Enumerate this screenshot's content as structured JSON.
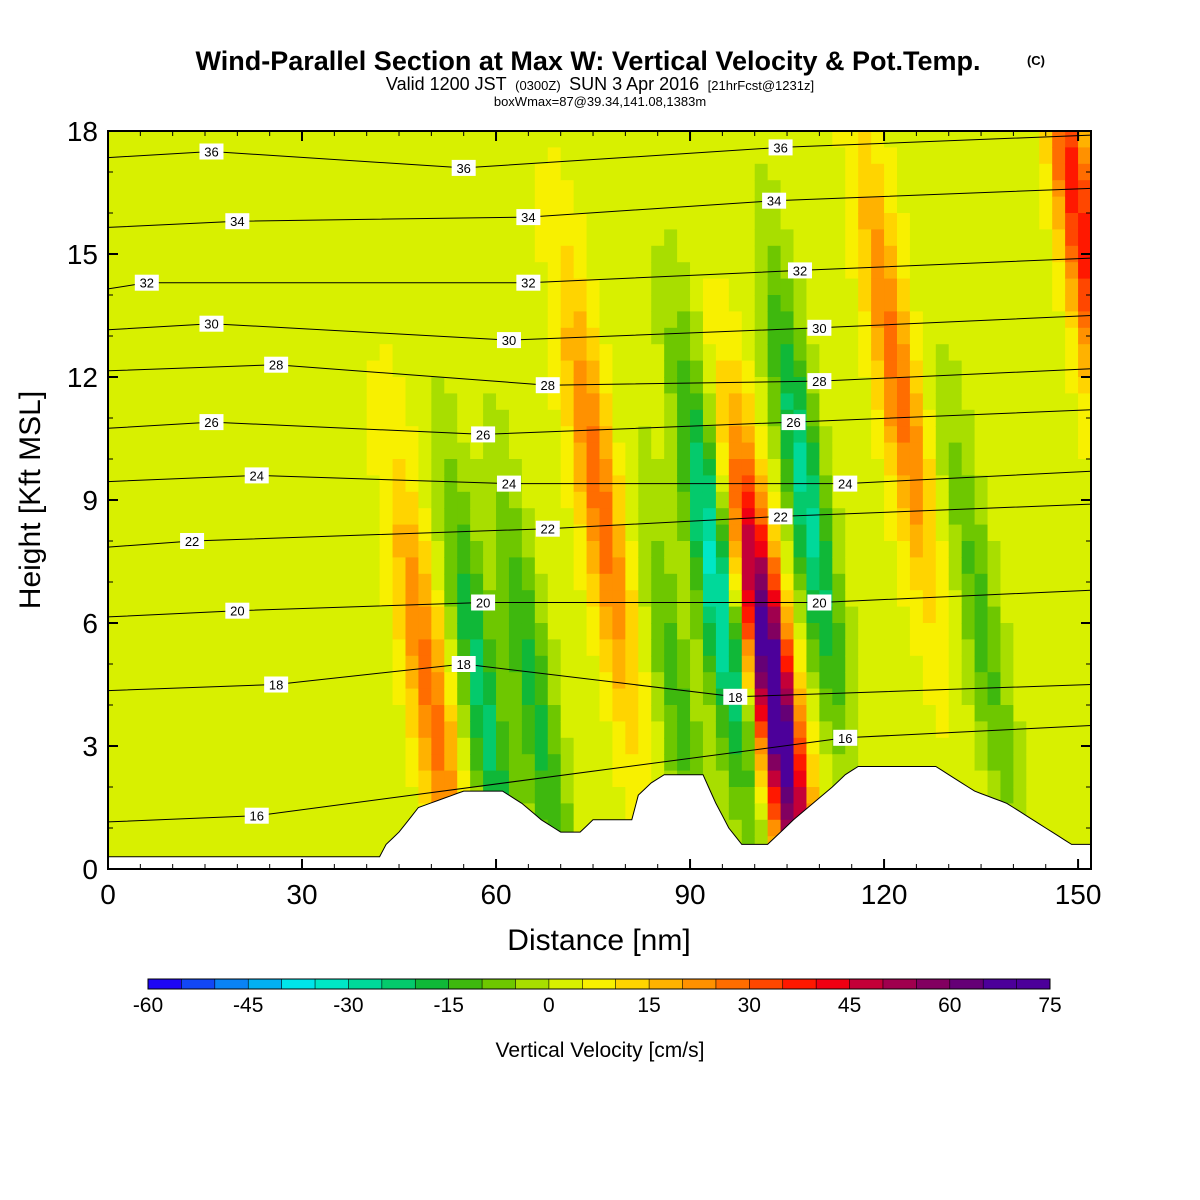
{
  "title": "Wind-Parallel Section at Max W: Vertical Velocity & Pot.Temp.",
  "title_units": "(C)",
  "subtitle_pre": "Valid 1200 JST",
  "subtitle_utc": "(0300Z)",
  "subtitle_mid": "SUN 3 Apr 2016",
  "subtitle_fcst": "[21hrFcst@1231z]",
  "subtitle2": "boxWmax=87@39.34,141.08,1383m",
  "chart_data": {
    "type": "heatmap",
    "xlabel": "Distance [nm]",
    "ylabel": "Height [Kft MSL]",
    "xlim": [
      0,
      152
    ],
    "ylim": [
      0,
      18
    ],
    "xticks": [
      "0",
      "30",
      "60",
      "90",
      "120",
      "150"
    ],
    "yticks": [
      "0",
      "3",
      "6",
      "9",
      "12",
      "15",
      "18"
    ],
    "colorbar": {
      "label": "Vertical Velocity [cm/s]",
      "min": -60,
      "max": 75,
      "step": 5,
      "tick_labels": [
        "-60",
        "-45",
        "-30",
        "-15",
        "0",
        "15",
        "30",
        "45",
        "60",
        "75"
      ],
      "colors": [
        "#1e06f5",
        "#1247f5",
        "#0a83f5",
        "#02b0f2",
        "#00e5ea",
        "#00e7c6",
        "#00d99a",
        "#04ca6c",
        "#10b838",
        "#3eb80e",
        "#6ec700",
        "#a8de00",
        "#d8f000",
        "#f8f000",
        "#ffd400",
        "#ffb200",
        "#ff9100",
        "#ff6d00",
        "#ff4700",
        "#ff1800",
        "#f00012",
        "#c40038",
        "#a0004e",
        "#820060",
        "#650076",
        "#4c009a"
      ]
    },
    "vertical_velocity_features": [
      {
        "x_nm": 50,
        "z_kft": 4.0,
        "w_cms": 25
      },
      {
        "x_nm": 58,
        "z_kft": 4.0,
        "w_cms": -25
      },
      {
        "x_nm": 66,
        "z_kft": 4.0,
        "w_cms": -20
      },
      {
        "x_nm": 76,
        "z_kft": 9.0,
        "w_cms": 25
      },
      {
        "x_nm": 88,
        "z_kft": 4.0,
        "w_cms": -15
      },
      {
        "x_nm": 94,
        "z_kft": 7.0,
        "w_cms": -35
      },
      {
        "x_nm": 103,
        "z_kft": 4.2,
        "w_cms": 75
      },
      {
        "x_nm": 108,
        "z_kft": 9.0,
        "w_cms": -30
      },
      {
        "x_nm": 122,
        "z_kft": 12.0,
        "w_cms": 25
      },
      {
        "x_nm": 135,
        "z_kft": 6.0,
        "w_cms": -15
      },
      {
        "x_nm": 150,
        "z_kft": 16.0,
        "w_cms": 35
      }
    ],
    "potential_temperature": {
      "units": "C",
      "contour_labels": [
        {
          "value": "36",
          "x_nm": 16,
          "z_kft": 17.5
        },
        {
          "value": "36",
          "x_nm": 55,
          "z_kft": 17.1
        },
        {
          "value": "36",
          "x_nm": 104,
          "z_kft": 17.6
        },
        {
          "value": "34",
          "x_nm": 20,
          "z_kft": 15.8
        },
        {
          "value": "34",
          "x_nm": 65,
          "z_kft": 15.9
        },
        {
          "value": "34",
          "x_nm": 103,
          "z_kft": 16.3
        },
        {
          "value": "32",
          "x_nm": 6,
          "z_kft": 14.3
        },
        {
          "value": "32",
          "x_nm": 65,
          "z_kft": 14.3
        },
        {
          "value": "32",
          "x_nm": 107,
          "z_kft": 14.6
        },
        {
          "value": "30",
          "x_nm": 16,
          "z_kft": 13.3
        },
        {
          "value": "30",
          "x_nm": 62,
          "z_kft": 12.9
        },
        {
          "value": "30",
          "x_nm": 110,
          "z_kft": 13.2
        },
        {
          "value": "28",
          "x_nm": 26,
          "z_kft": 12.3
        },
        {
          "value": "28",
          "x_nm": 68,
          "z_kft": 11.8
        },
        {
          "value": "28",
          "x_nm": 110,
          "z_kft": 11.9
        },
        {
          "value": "26",
          "x_nm": 16,
          "z_kft": 10.9
        },
        {
          "value": "26",
          "x_nm": 58,
          "z_kft": 10.6
        },
        {
          "value": "26",
          "x_nm": 106,
          "z_kft": 10.9
        },
        {
          "value": "24",
          "x_nm": 23,
          "z_kft": 9.6
        },
        {
          "value": "24",
          "x_nm": 62,
          "z_kft": 9.4
        },
        {
          "value": "24",
          "x_nm": 114,
          "z_kft": 9.4
        },
        {
          "value": "22",
          "x_nm": 13,
          "z_kft": 8.0
        },
        {
          "value": "22",
          "x_nm": 68,
          "z_kft": 8.3
        },
        {
          "value": "22",
          "x_nm": 104,
          "z_kft": 8.6
        },
        {
          "value": "20",
          "x_nm": 20,
          "z_kft": 6.3
        },
        {
          "value": "20",
          "x_nm": 58,
          "z_kft": 6.5
        },
        {
          "value": "20",
          "x_nm": 110,
          "z_kft": 6.5
        },
        {
          "value": "18",
          "x_nm": 26,
          "z_kft": 4.5
        },
        {
          "value": "18",
          "x_nm": 55,
          "z_kft": 5.0
        },
        {
          "value": "18",
          "x_nm": 97,
          "z_kft": 4.2
        },
        {
          "value": "16",
          "x_nm": 23,
          "z_kft": 1.3
        },
        {
          "value": "16",
          "x_nm": 114,
          "z_kft": 3.2
        }
      ]
    },
    "terrain_kft": [
      [
        0,
        0.3
      ],
      [
        42,
        0.3
      ],
      [
        43,
        0.6
      ],
      [
        45,
        0.9
      ],
      [
        48,
        1.5
      ],
      [
        55,
        1.9
      ],
      [
        61,
        1.9
      ],
      [
        64,
        1.6
      ],
      [
        67,
        1.2
      ],
      [
        70,
        0.9
      ],
      [
        73,
        0.9
      ],
      [
        75,
        1.2
      ],
      [
        81,
        1.2
      ],
      [
        82,
        1.8
      ],
      [
        84,
        2.1
      ],
      [
        86,
        2.3
      ],
      [
        92,
        2.3
      ],
      [
        94,
        1.6
      ],
      [
        96,
        1.0
      ],
      [
        98,
        0.6
      ],
      [
        102,
        0.6
      ],
      [
        104,
        0.9
      ],
      [
        106,
        1.2
      ],
      [
        109,
        1.6
      ],
      [
        112,
        2.0
      ],
      [
        114,
        2.3
      ],
      [
        116,
        2.5
      ],
      [
        128,
        2.5
      ],
      [
        131,
        2.2
      ],
      [
        134,
        1.9
      ],
      [
        139,
        1.6
      ],
      [
        143,
        1.2
      ],
      [
        146,
        0.9
      ],
      [
        149,
        0.6
      ],
      [
        152,
        0.6
      ]
    ]
  }
}
